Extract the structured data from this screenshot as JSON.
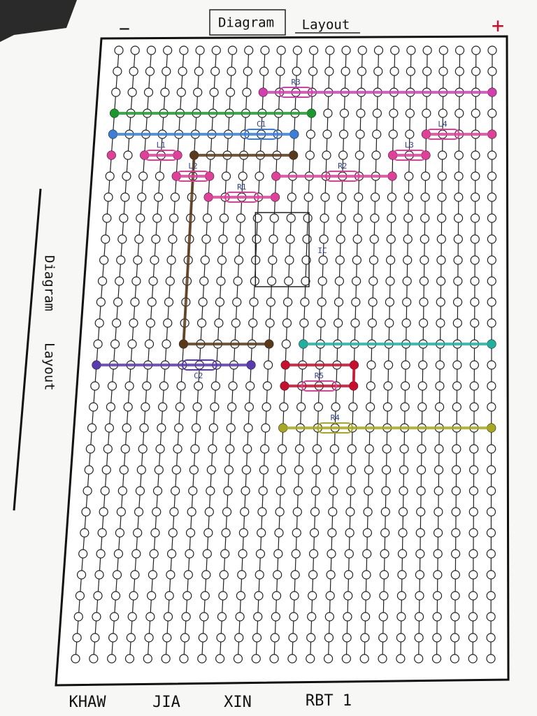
{
  "header": {
    "title": [
      "Diagram",
      "Layout"
    ],
    "minus": "−",
    "plus": "+"
  },
  "side_label": [
    "Diagram",
    "Layout"
  ],
  "components": [
    {
      "label": "R3"
    },
    {
      "label": "C1"
    },
    {
      "label": "L4"
    },
    {
      "label": "L1"
    },
    {
      "label": "L3"
    },
    {
      "label": "L2"
    },
    {
      "label": "R2"
    },
    {
      "label": "R1"
    },
    {
      "label": "IC"
    },
    {
      "label": "C2"
    },
    {
      "label": "R5"
    },
    {
      "label": "R4"
    }
  ],
  "footer": [
    "KHAW",
    "JIA",
    "XIN",
    "RBT 1"
  ]
}
